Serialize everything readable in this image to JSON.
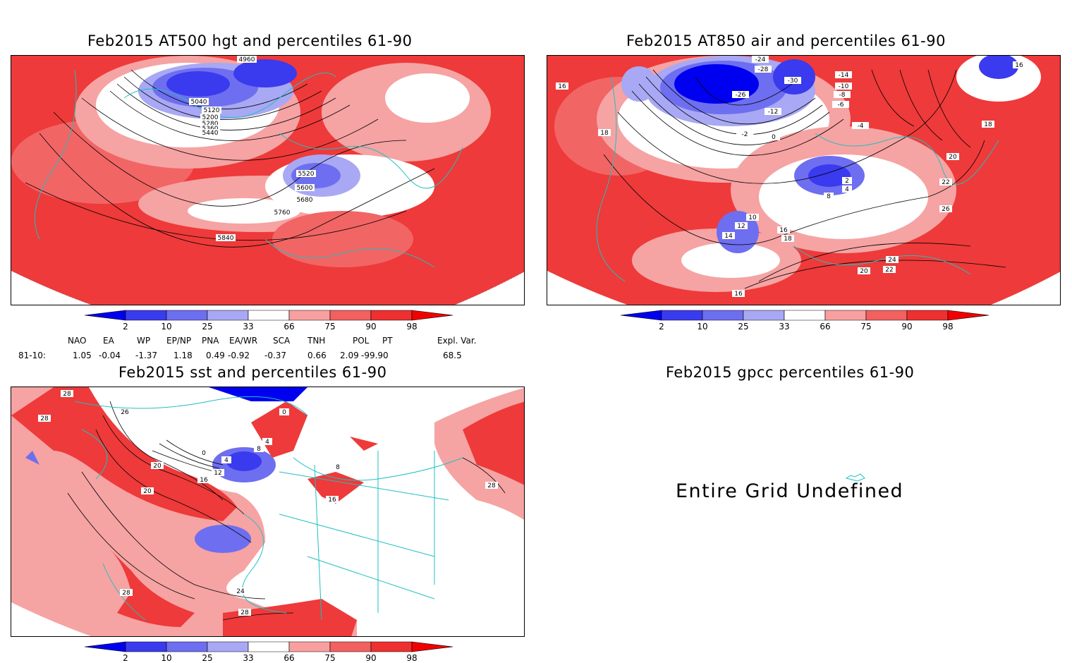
{
  "panels": {
    "hgt": {
      "title": "Feb2015 AT500 hgt and percentiles 61-90",
      "contour_labels": [
        "4960",
        "5040",
        "5120",
        "5200",
        "5280",
        "5360",
        "5440",
        "5520",
        "5600",
        "5680",
        "5760",
        "5840"
      ]
    },
    "air": {
      "title": "Feb2015 AT850 air and percentiles 61-90",
      "contour_labels": [
        "-24",
        "-26",
        "-28",
        "-30",
        "-14",
        "-12",
        "-10",
        "-8",
        "-6",
        "-4",
        "-2",
        "0",
        "2",
        "4",
        "8",
        "10",
        "12",
        "14",
        "16",
        "16",
        "16",
        "18",
        "18",
        "18",
        "20",
        "22",
        "22",
        "24",
        "26",
        "16",
        "20"
      ]
    },
    "sst": {
      "title": "Feb2015 sst and percentiles 61-90",
      "contour_labels": [
        "28",
        "28",
        "26",
        "28",
        "20",
        "0",
        "0",
        "4",
        "4",
        "8",
        "8",
        "12",
        "16",
        "20",
        "24",
        "28",
        "16",
        "28"
      ]
    },
    "gpcc": {
      "title": "Feb2015 gpcc percentiles 61-90",
      "message": "Entire Grid Undefined"
    }
  },
  "colorbar": {
    "ticks": [
      "2",
      "10",
      "25",
      "33",
      "66",
      "75",
      "90",
      "98"
    ],
    "colors": [
      "#0000f0",
      "#3a3aee",
      "#6e6ef0",
      "#a8a8f4",
      "#ffffff",
      "#f8a0a0",
      "#f26060",
      "#ee3030",
      "#f00000"
    ]
  },
  "indices": {
    "headers": [
      "NAO",
      "EA",
      "WP",
      "EP/NP",
      "PNA",
      "EA/WR",
      "SCA",
      "TNH",
      "POL",
      "PT",
      "Expl. Var."
    ],
    "row_label": "81-10:",
    "values": [
      "1.05",
      "-0.04",
      "-1.37",
      "1.18",
      "0.49",
      "-0.92",
      "-0.37",
      "0.66",
      "2.09",
      "-99.90",
      "68.5"
    ]
  }
}
